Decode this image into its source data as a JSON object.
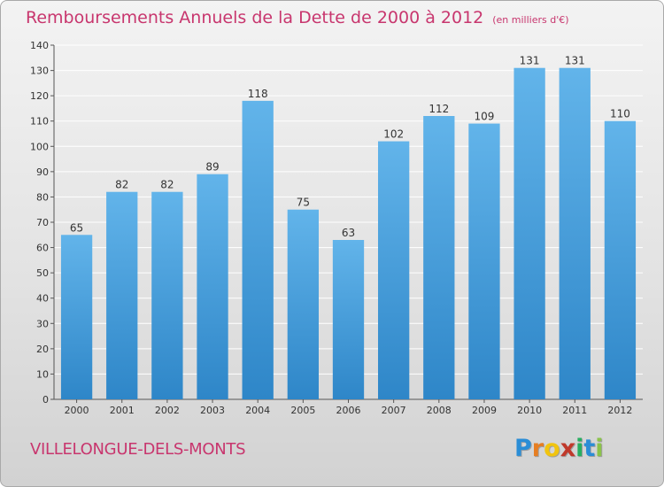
{
  "title": "Remboursements Annuels de la Dette de 2000 à 2012",
  "unit_note": "(en milliers d'€)",
  "town": "VILLELONGUE-DELS-MONTS",
  "logo": {
    "letters": [
      "P",
      "r",
      "o",
      "x",
      "i",
      "t",
      "i"
    ],
    "colors": [
      "#2a8dd6",
      "#e67e22",
      "#f1c40f",
      "#c0392b",
      "#27ae60",
      "#2a8dd6",
      "#8bc34a"
    ]
  },
  "colors": {
    "bar_top": "#62b4ea",
    "bar_bottom": "#2e86c8",
    "title": "#c8366e",
    "grid": "#ffffff"
  },
  "chart_data": {
    "type": "bar",
    "title": "Remboursements Annuels de la Dette de 2000 à 2012",
    "xlabel": "",
    "ylabel": "",
    "ylim": [
      0,
      140
    ],
    "yticks": [
      0,
      10,
      20,
      30,
      40,
      50,
      60,
      70,
      80,
      90,
      100,
      110,
      120,
      130,
      140
    ],
    "categories": [
      "2000",
      "2001",
      "2002",
      "2003",
      "2004",
      "2005",
      "2006",
      "2007",
      "2008",
      "2009",
      "2010",
      "2011",
      "2012"
    ],
    "values": [
      65,
      82,
      82,
      89,
      118,
      75,
      63,
      102,
      112,
      109,
      131,
      131,
      110
    ],
    "data_labels": [
      "65",
      "82",
      "82",
      "89",
      "118",
      "75",
      "63",
      "102",
      "112",
      "109",
      "131",
      "131",
      "110"
    ],
    "grid": true
  }
}
